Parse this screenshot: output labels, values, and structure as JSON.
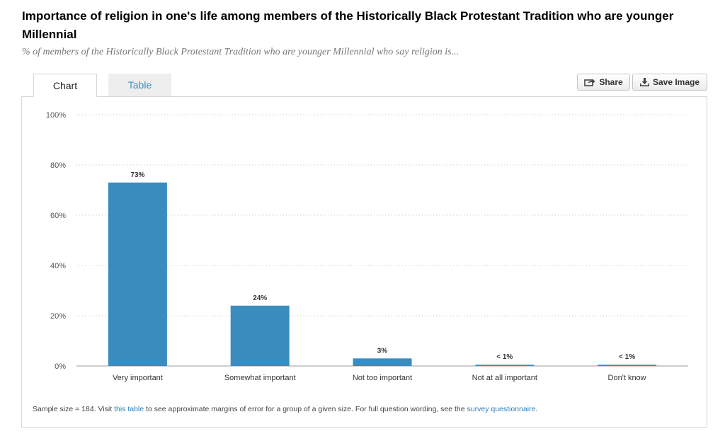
{
  "header": {
    "title": "Importance of religion in one's life among members of the Historically Black Protestant Tradition who are younger Millennial",
    "subtitle": "% of members of the Historically Black Protestant Tradition who are younger Millennial who say religion is..."
  },
  "tabs": {
    "chart_label": "Chart",
    "table_label": "Table"
  },
  "toolbar": {
    "share_label": "Share",
    "save_label": "Save Image"
  },
  "footnote": {
    "prefix": "Sample size = 184. Visit ",
    "link1": "this table",
    "middle": " to see approximate margins of error for a group of a given size. For full question wording, see the ",
    "link2": "survey questionnaire",
    "suffix": "."
  },
  "colors": {
    "bar": "#3a8cbf",
    "link": "#2d7fb8",
    "tab_active_text": "#3a8fc3"
  },
  "chart_data": {
    "type": "bar",
    "categories": [
      "Very important",
      "Somewhat important",
      "Not too important",
      "Not at all important",
      "Don't know"
    ],
    "values": [
      73,
      24,
      3,
      0.5,
      0.5
    ],
    "data_labels": [
      "73%",
      "24%",
      "3%",
      "< 1%",
      "< 1%"
    ],
    "ylim": [
      0,
      100
    ],
    "yticks": [
      0,
      20,
      40,
      60,
      80,
      100
    ],
    "ytick_labels": [
      "0%",
      "20%",
      "40%",
      "60%",
      "80%",
      "100%"
    ],
    "grid": true
  }
}
